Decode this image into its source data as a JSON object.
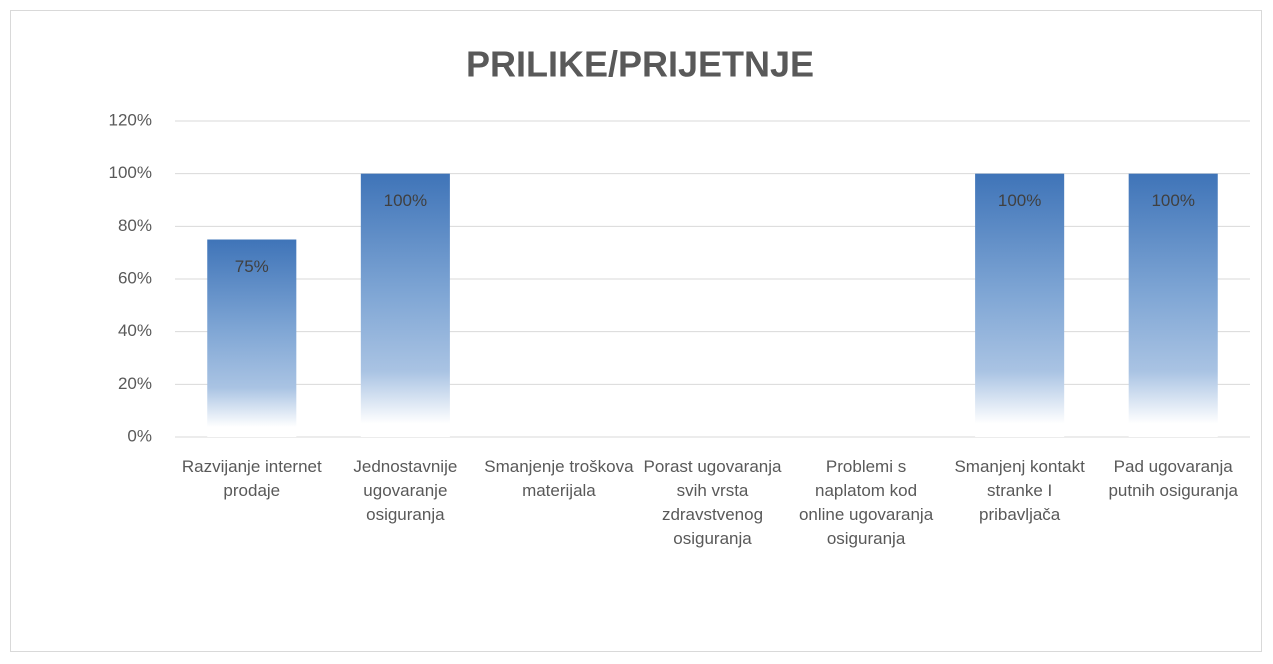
{
  "chart_data": {
    "type": "bar",
    "title": "PRILIKE/PRIJETNJE",
    "categories": [
      "Razvijanje internet prodaje",
      "Jednostavnije ugovaranje osiguranja",
      "Smanjenje troškova materijala",
      "Porast ugovaranja svih vrsta zdravstvenog osiguranja",
      "Problemi s naplatom kod online ugovaranja osiguranja",
      "Smanjenj kontakt stranke I pribavljača",
      "Pad ugovaranja putnih osiguranja"
    ],
    "values": [
      75,
      100,
      null,
      null,
      null,
      100,
      100
    ],
    "value_labels": [
      "75%",
      "100%",
      null,
      null,
      null,
      "100%",
      "100%"
    ],
    "color": "#4a7ebb",
    "ylim": [
      0,
      120
    ],
    "yticks": [
      {
        "value": 0,
        "label": "0%"
      },
      {
        "value": 20,
        "label": "20%"
      },
      {
        "value": 40,
        "label": "40%"
      },
      {
        "value": 60,
        "label": "60%"
      },
      {
        "value": 80,
        "label": "80%"
      },
      {
        "value": 100,
        "label": "100%"
      },
      {
        "value": 120,
        "label": "120%"
      }
    ],
    "grid": true
  }
}
